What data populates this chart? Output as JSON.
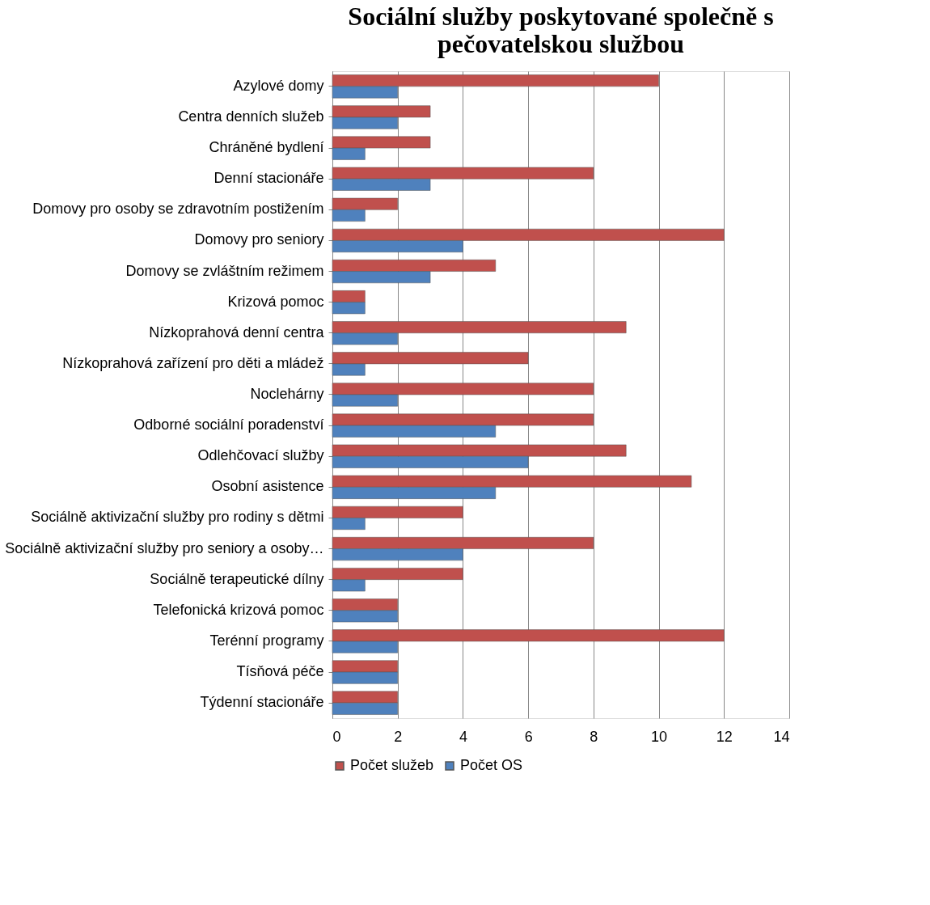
{
  "chart_data": {
    "type": "bar",
    "orientation": "horizontal",
    "title": "Sociální služby poskytované společně s pečovatelskou službou",
    "categories": [
      "Azylové domy",
      "Centra denních služeb",
      "Chráněné bydlení",
      "Denní stacionáře",
      "Domovy pro osoby se zdravotním postižením",
      "Domovy pro seniory",
      "Domovy se zvláštním režimem",
      "Krizová pomoc",
      "Nízkoprahová denní centra",
      "Nízkoprahová zařízení pro děti a mládež",
      "Noclehárny",
      "Odborné sociální poradenství",
      "Odlehčovací služby",
      "Osobní asistence",
      "Sociálně aktivizační služby pro rodiny s dětmi",
      "Sociálně aktivizační služby pro seniory a osoby…",
      "Sociálně terapeutické dílny",
      "Telefonická krizová pomoc",
      "Terénní programy",
      "Tísňová péče",
      "Týdenní stacionáře"
    ],
    "series": [
      {
        "name": "Počet služeb",
        "color": "#c0504d",
        "values": [
          10,
          3,
          3,
          8,
          2,
          12,
          5,
          1,
          9,
          6,
          8,
          8,
          9,
          11,
          4,
          8,
          4,
          2,
          12,
          2,
          2
        ]
      },
      {
        "name": "Počet OS",
        "color": "#4f81bd",
        "values": [
          2,
          2,
          1,
          3,
          1,
          4,
          3,
          1,
          2,
          1,
          2,
          5,
          6,
          5,
          1,
          4,
          1,
          2,
          2,
          2,
          2
        ]
      }
    ],
    "xlim": [
      0,
      14
    ],
    "xticks": [
      0,
      2,
      4,
      6,
      8,
      10,
      12,
      14
    ],
    "grid": "x",
    "legend": "bottom"
  }
}
